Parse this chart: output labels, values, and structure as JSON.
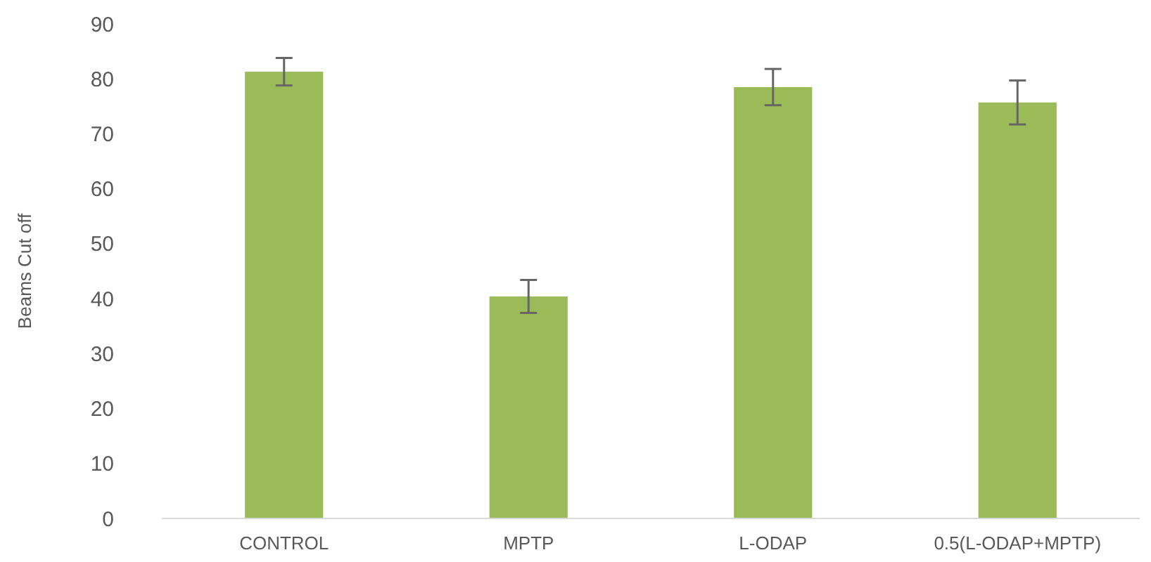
{
  "chart_data": {
    "type": "bar",
    "ylabel": "Beams Cut off",
    "categories": [
      "CONTROL",
      "MPTP",
      "L-ODAP",
      "0.5(L-ODAP+MPTP)"
    ],
    "values": [
      81.3,
      40.4,
      78.5,
      75.7
    ],
    "errors": [
      2.5,
      3,
      3.3,
      4
    ],
    "color": "#9bbb59",
    "ylim": [
      0,
      90
    ],
    "yticks": [
      0,
      10,
      20,
      30,
      40,
      50,
      60,
      70,
      80,
      90
    ],
    "grid": false
  }
}
